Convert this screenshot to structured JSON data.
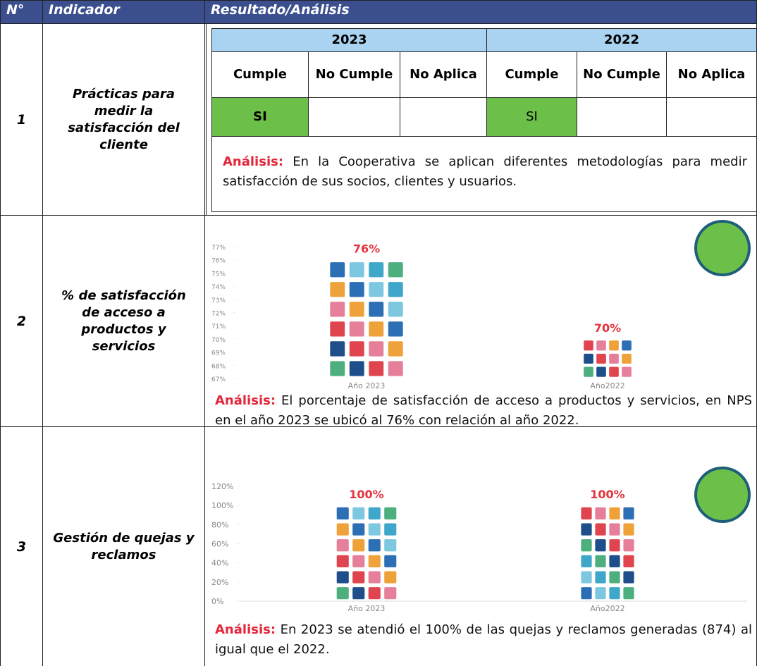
{
  "header": {
    "number": "N°",
    "indicator": "Indicador",
    "result": "Resultado/Análisis"
  },
  "rows": [
    {
      "number": "1",
      "indicator": "Prácticas para medir la satisfacción del cliente",
      "years": [
        "2023",
        "2022"
      ],
      "columns": [
        "Cumple",
        "No Cumple",
        "No Aplica",
        "Cumple",
        "No Cumple",
        "No Aplica"
      ],
      "cumple": [
        "SI",
        "SI"
      ],
      "analysis_label": "Análisis:",
      "analysis_text": "En la Cooperativa se aplican diferentes metodologías para medir satisfacción de sus socios, clientes y usuarios."
    },
    {
      "number": "2",
      "indicator": "% de satisfacción de acceso a productos y servicios",
      "chart": {
        "type": "bar",
        "ylim": [
          67,
          77
        ],
        "yticks": [
          {
            "value": 67,
            "label": "67%"
          },
          {
            "value": 68,
            "label": "68%"
          },
          {
            "value": 69,
            "label": "69%"
          },
          {
            "value": 70,
            "label": "70%"
          },
          {
            "value": 71,
            "label": "71%"
          },
          {
            "value": 72,
            "label": "72%"
          },
          {
            "value": 73,
            "label": "73%"
          },
          {
            "value": 74,
            "label": "74%"
          },
          {
            "value": 75,
            "label": "75%"
          },
          {
            "value": 76,
            "label": "76%"
          },
          {
            "value": 77,
            "label": "77%"
          }
        ],
        "categories": [
          "Año 2023",
          "Año2022"
        ],
        "values": [
          76,
          70
        ],
        "value_labels": [
          "76%",
          "70%"
        ]
      },
      "analysis_label": "Análisis:",
      "analysis_text": "El porcentaje de satisfacción de acceso a productos y servicios, en NPS en el año 2023 se ubicó al 76% con relación al año 2022."
    },
    {
      "number": "3",
      "indicator": "Gestión de quejas y reclamos",
      "chart": {
        "type": "bar",
        "ylim": [
          0,
          120
        ],
        "yticks": [
          {
            "value": 0,
            "label": "0%"
          },
          {
            "value": 20,
            "label": "20%"
          },
          {
            "value": 40,
            "label": "40%"
          },
          {
            "value": 60,
            "label": "60%"
          },
          {
            "value": 80,
            "label": "80%"
          },
          {
            "value": 100,
            "label": "100%"
          },
          {
            "value": 120,
            "label": "120%"
          }
        ],
        "categories": [
          "Año 2023",
          "Año2022"
        ],
        "values": [
          100,
          100
        ],
        "value_labels": [
          "100%",
          "100%"
        ]
      },
      "analysis_label": "Análisis:",
      "analysis_text": "En 2023 se atendió el 100% de las quejas y reclamos generadas (874) al igual que el 2022."
    }
  ]
}
